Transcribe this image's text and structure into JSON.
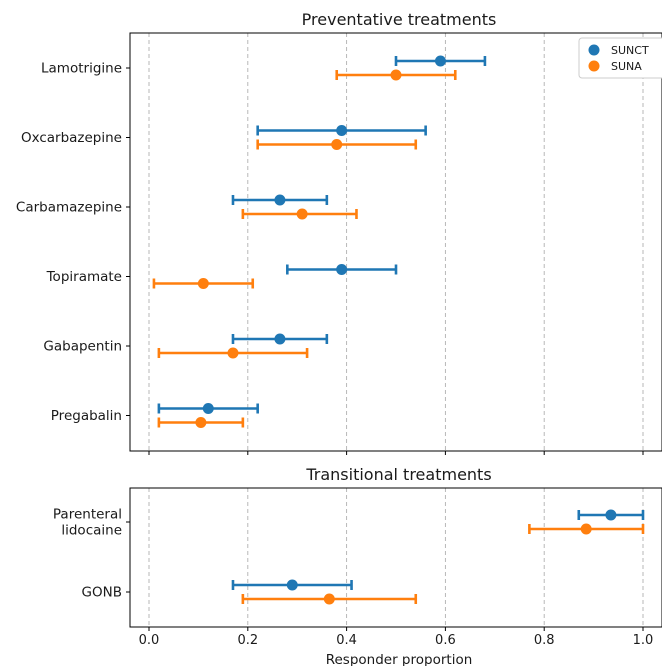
{
  "chart_data": [
    {
      "type": "scatter",
      "title": "Preventative treatments",
      "categories": [
        "Lamotrigine",
        "Oxcarbazepine",
        "Carbamazepine",
        "Topiramate",
        "Gabapentin",
        "Pregabalin"
      ],
      "category_labels": [
        [
          "Lamotrigine"
        ],
        [
          "Oxcarbazepine"
        ],
        [
          "Carbamazepine"
        ],
        [
          "Topiramate"
        ],
        [
          "Gabapentin"
        ],
        [
          "Pregabalin"
        ]
      ],
      "series": [
        {
          "name": "SUNCT",
          "color": "#1f77b4",
          "values": [
            0.59,
            0.39,
            0.265,
            0.39,
            0.265,
            0.12
          ],
          "ci_low": [
            0.5,
            0.22,
            0.17,
            0.28,
            0.17,
            0.02
          ],
          "ci_high": [
            0.68,
            0.56,
            0.36,
            0.5,
            0.36,
            0.22
          ]
        },
        {
          "name": "SUNA",
          "color": "#ff7f0e",
          "values": [
            0.5,
            0.38,
            0.31,
            0.11,
            0.17,
            0.105
          ],
          "ci_low": [
            0.38,
            0.22,
            0.19,
            0.01,
            0.02,
            0.02
          ],
          "ci_high": [
            0.62,
            0.54,
            0.42,
            0.21,
            0.32,
            0.19
          ]
        }
      ],
      "xlim": [
        -0.04,
        1.04
      ],
      "grid": "vertical-dashed",
      "legend": "top-right"
    },
    {
      "type": "scatter",
      "title": "Transitional treatments",
      "categories": [
        "Parenteral lidocaine",
        "GONB"
      ],
      "category_labels": [
        [
          "Parenteral",
          "lidocaine"
        ],
        [
          "GONB"
        ]
      ],
      "series": [
        {
          "name": "SUNCT",
          "color": "#1f77b4",
          "values": [
            0.935,
            0.29
          ],
          "ci_low": [
            0.87,
            0.17
          ],
          "ci_high": [
            1.0,
            0.41
          ]
        },
        {
          "name": "SUNA",
          "color": "#ff7f0e",
          "values": [
            0.885,
            0.365
          ],
          "ci_low": [
            0.77,
            0.19
          ],
          "ci_high": [
            1.0,
            0.54
          ]
        }
      ],
      "xlim": [
        -0.04,
        1.04
      ],
      "xticks": [
        "0.0",
        "0.2",
        "0.4",
        "0.6",
        "0.8",
        "1.0"
      ],
      "xlabel": "Responder proportion",
      "grid": "vertical-dashed"
    }
  ],
  "legend": {
    "entries": [
      {
        "label": "SUNCT",
        "color": "#1f77b4"
      },
      {
        "label": "SUNA",
        "color": "#ff7f0e"
      }
    ]
  }
}
